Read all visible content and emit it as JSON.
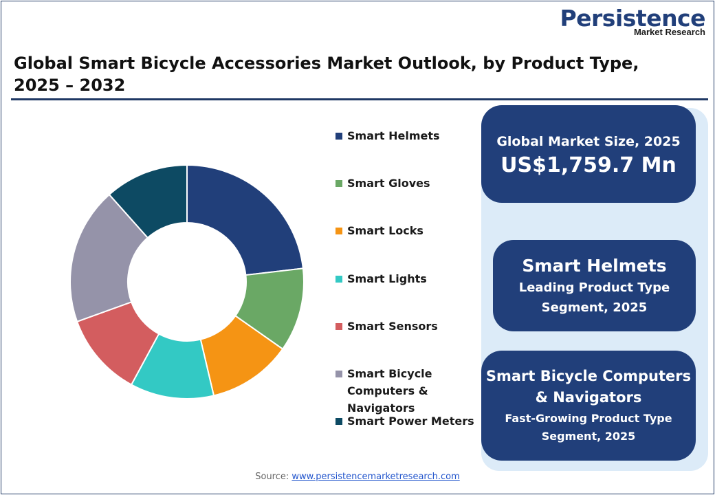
{
  "logo": {
    "main": "Persistence",
    "sub": "Market Research"
  },
  "title": "Global Smart Bicycle Accessories Market Outlook, by Product Type, 2025 – 2032",
  "chart_data": {
    "type": "pie",
    "style": "donut",
    "categories": [
      "Smart Helmets",
      "Smart Gloves",
      "Smart Locks",
      "Smart Lights",
      "Smart Sensors",
      "Smart Bicycle Computers & Navigators",
      "Smart Power Meters"
    ],
    "values": [
      22,
      11,
      11,
      11,
      11,
      18,
      11
    ],
    "unit": "%",
    "colors": [
      "#213f7a",
      "#6aa865",
      "#f59414",
      "#33c9c4",
      "#d35d5f",
      "#9593a9",
      "#0d4a63"
    ],
    "legend_placement": "right"
  },
  "cards": {
    "market_size_label": "Global Market Size, 2025",
    "market_size_value": "US$1,759.7 Mn",
    "leading_title": "Smart Helmets",
    "leading_sub": "Leading Product Type Segment, 2025",
    "fastest_title": "Smart Bicycle Computers & Navigators",
    "fastest_sub": "Fast-Growing Product Type Segment, 2025"
  },
  "source": {
    "label": "Source:",
    "link": "www.persistencemarketresearch.com"
  }
}
